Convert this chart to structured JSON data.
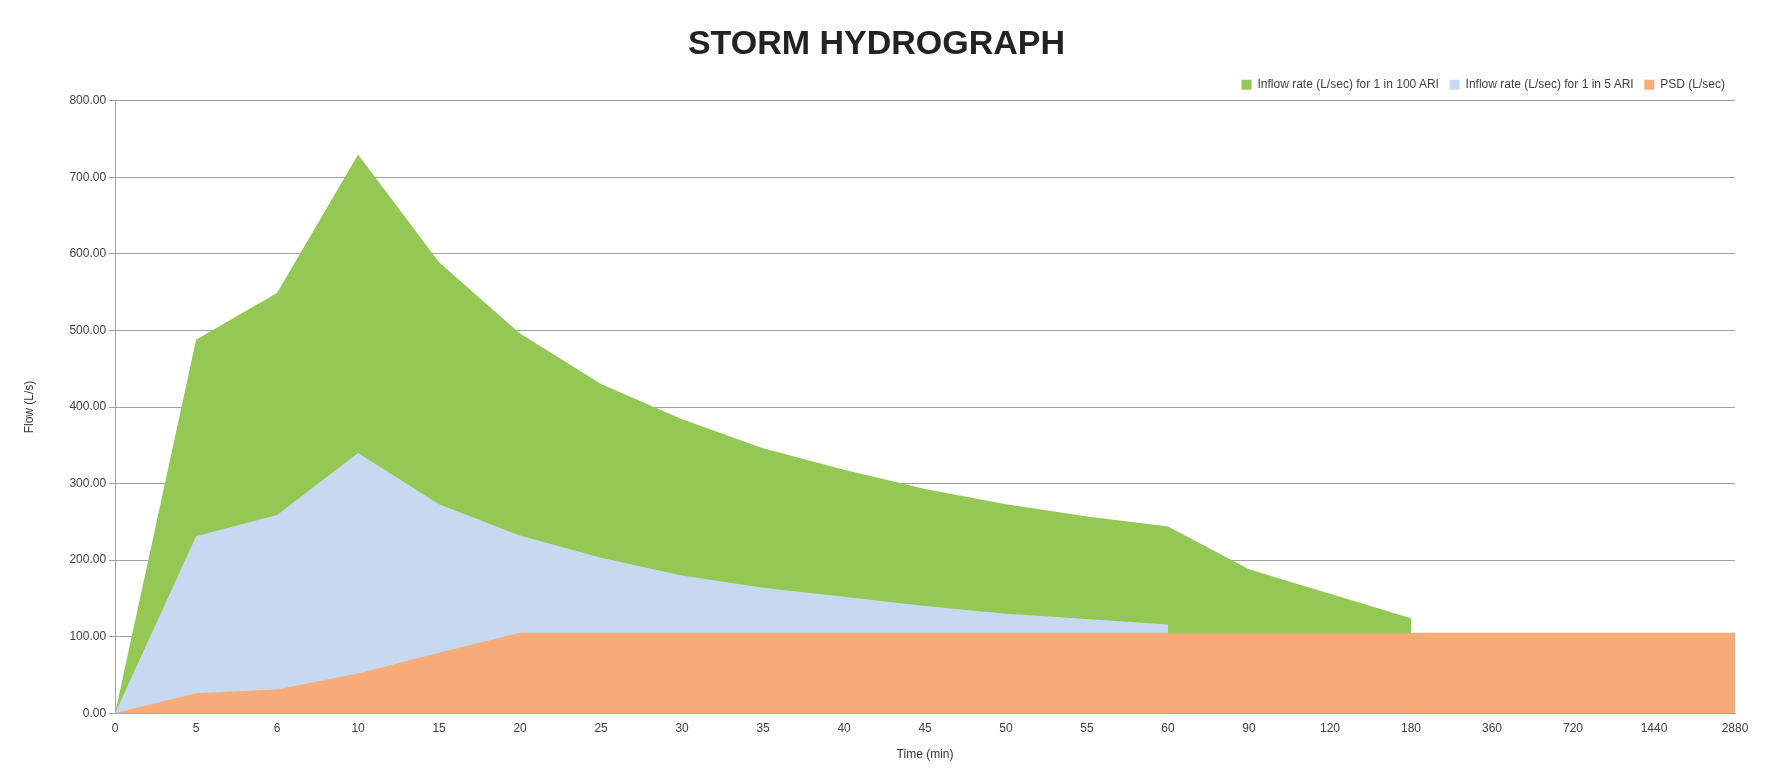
{
  "chart_data": {
    "type": "area",
    "title": "STORM HYDROGRAPH",
    "xlabel": "Time (min)",
    "ylabel": "Flow (L/s)",
    "categories": [
      "0",
      "5",
      "6",
      "10",
      "15",
      "20",
      "25",
      "30",
      "35",
      "40",
      "45",
      "50",
      "55",
      "60",
      "90",
      "120",
      "180",
      "360",
      "720",
      "1440",
      "2880"
    ],
    "series": [
      {
        "name": "Inflow rate (L/sec) for 1 in 100 ARI",
        "color": "#92c853",
        "values": [
          0,
          488,
          549,
          730,
          589,
          496,
          430,
          384,
          346,
          318,
          293,
          273,
          257,
          244,
          188,
          156,
          124,
          null,
          null,
          null,
          null
        ]
      },
      {
        "name": "Inflow rate (L/sec) for 1 in 5 ARI",
        "color": "#c6d9f0",
        "values": [
          0,
          231,
          259,
          340,
          273,
          232,
          203,
          180,
          164,
          152,
          140,
          130,
          123,
          116,
          null,
          null,
          null,
          null,
          null,
          null,
          null
        ]
      },
      {
        "name": "PSD (L/sec)",
        "color": "#f7ab79",
        "values": [
          0,
          26,
          31,
          52,
          79,
          105,
          105,
          105,
          105,
          105,
          105,
          105,
          105,
          105,
          105,
          105,
          105,
          105,
          105,
          105,
          105
        ]
      }
    ],
    "ylim": [
      0,
      800
    ],
    "yticks": [
      {
        "value": 0,
        "label": "0.00"
      },
      {
        "value": 100,
        "label": "100.00"
      },
      {
        "value": 200,
        "label": "200.00"
      },
      {
        "value": 300,
        "label": "300.00"
      },
      {
        "value": 400,
        "label": "400.00"
      },
      {
        "value": 500,
        "label": "500.00"
      },
      {
        "value": 600,
        "label": "600.00"
      },
      {
        "value": 700,
        "label": "700.00"
      },
      {
        "value": 800,
        "label": "800.00"
      }
    ],
    "grid": "y",
    "legend": "top right"
  }
}
